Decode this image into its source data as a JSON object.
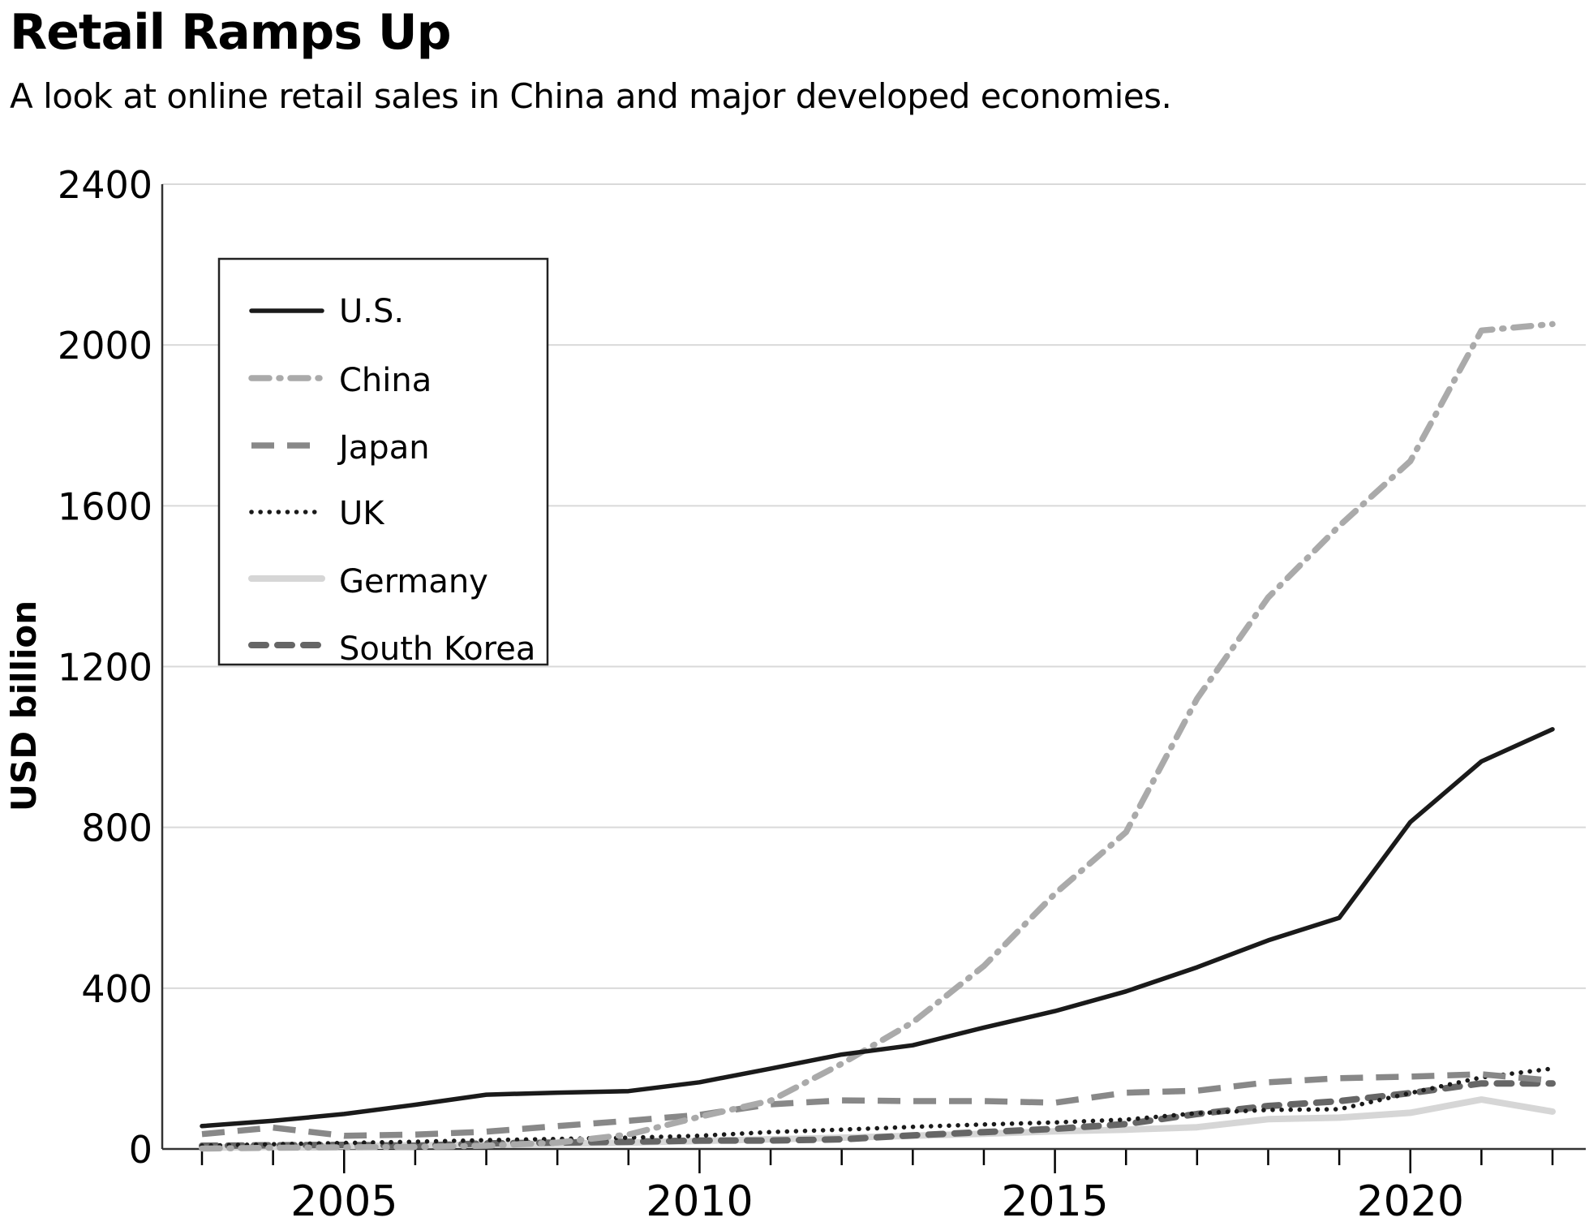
{
  "chart_data": {
    "type": "line",
    "title": "Retail Ramps Up",
    "subtitle": "A look at online retail sales in China and major developed economies.",
    "xlabel": "",
    "ylabel": "USD billion",
    "xlim": [
      2003,
      2022
    ],
    "ylim": [
      0,
      2400
    ],
    "yticks": [
      0,
      400,
      800,
      1200,
      1600,
      2000,
      2400
    ],
    "xticks_major": [
      2005,
      2010,
      2015,
      2020
    ],
    "xticks_minor": [
      2003,
      2004,
      2006,
      2007,
      2008,
      2009,
      2011,
      2012,
      2013,
      2014,
      2016,
      2017,
      2018,
      2019,
      2021,
      2022
    ],
    "grid": "horizontal",
    "legend_position": "top-left",
    "x": [
      2003,
      2004,
      2005,
      2006,
      2007,
      2008,
      2009,
      2010,
      2011,
      2012,
      2013,
      2014,
      2015,
      2016,
      2017,
      2018,
      2019,
      2020,
      2021,
      2022
    ],
    "series": [
      {
        "name": "U.S.",
        "style": "solid",
        "color": "#1a1a1a",
        "values": [
          57,
          70,
          87,
          110,
          135,
          140,
          144,
          166,
          200,
          235,
          258,
          302,
          343,
          392,
          452,
          519,
          575,
          813,
          964,
          1044
        ]
      },
      {
        "name": "China",
        "style": "dashdot",
        "color": "#aaaaaa",
        "values": [
          1,
          3,
          4,
          5,
          8,
          16,
          36,
          80,
          120,
          212,
          315,
          455,
          635,
          788,
          1120,
          1372,
          1550,
          1711,
          2036,
          2052
        ]
      },
      {
        "name": "Japan",
        "style": "dashed",
        "color": "#888888",
        "values": [
          37,
          53,
          33,
          36,
          43,
          57,
          70,
          85,
          111,
          121,
          119,
          119,
          115,
          140,
          145,
          166,
          176,
          180,
          186,
          170
        ]
      },
      {
        "name": "UK",
        "style": "dotted",
        "color": "#1a1a1a",
        "values": [
          8,
          12,
          15,
          18,
          22,
          25,
          28,
          33,
          42,
          48,
          55,
          61,
          66,
          73,
          89,
          97,
          99,
          139,
          178,
          200
        ]
      },
      {
        "name": "Germany",
        "style": "solid-light",
        "color": "#d6d6d6",
        "values": [
          3,
          5,
          7,
          9,
          11,
          13,
          16,
          20,
          24,
          28,
          33,
          38,
          44,
          48,
          54,
          74,
          78,
          90,
          123,
          93
        ]
      },
      {
        "name": "South Korea",
        "style": "dashed-short",
        "color": "#666666",
        "values": [
          8,
          9,
          10,
          8,
          14,
          16,
          18,
          21,
          21,
          24,
          34,
          42,
          50,
          62,
          87,
          107,
          119,
          139,
          163,
          163
        ]
      }
    ]
  }
}
